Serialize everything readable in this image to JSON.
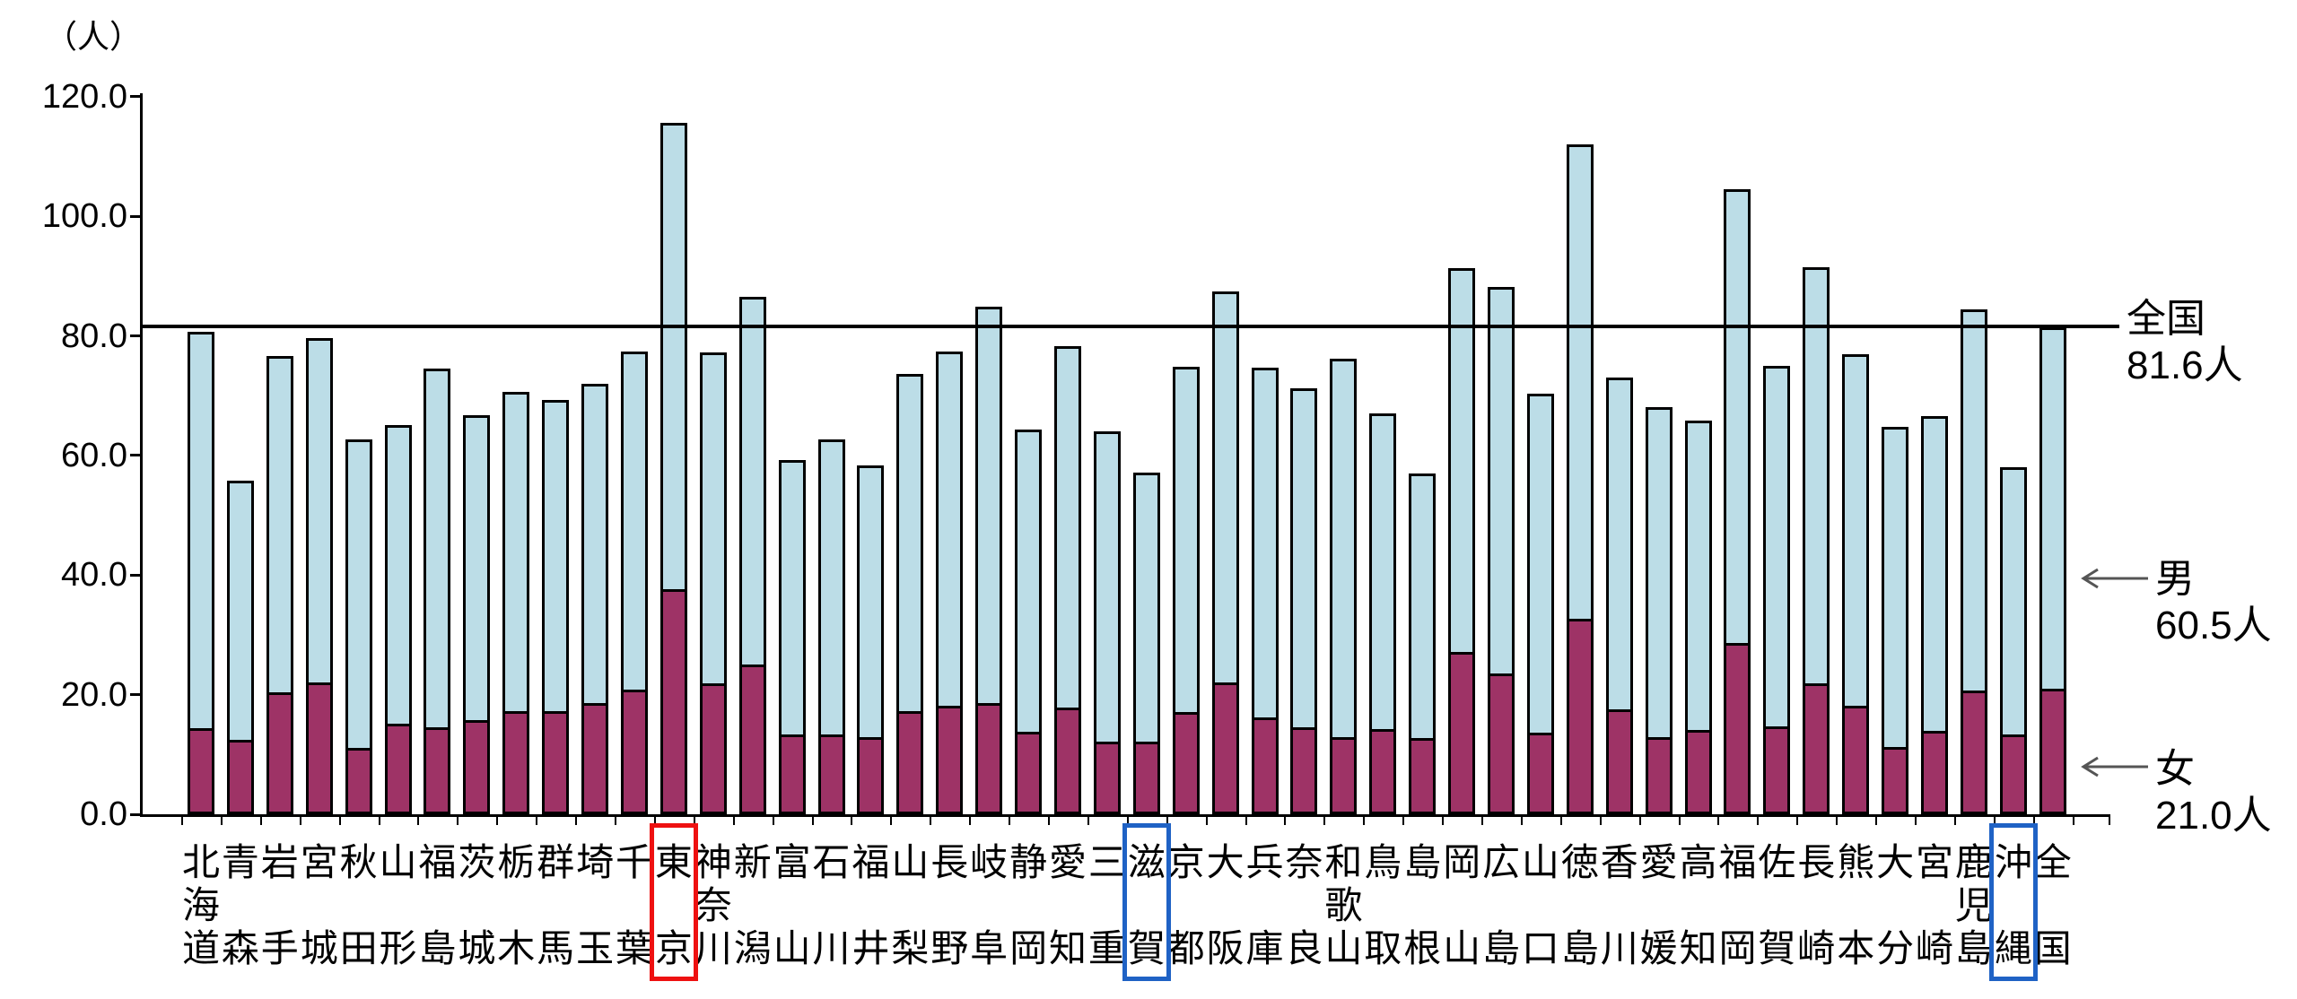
{
  "chart": {
    "unit_label": "（人）",
    "y_ticks": {
      "labels": [
        "120.0",
        "100.0",
        "80.0",
        "60.0",
        "40.0",
        "20.0",
        "0.0"
      ],
      "values": [
        120,
        100,
        80,
        60,
        40,
        20,
        0
      ]
    },
    "national_line": {
      "label": "全国",
      "value_label": "81.6人",
      "value": 81.6
    },
    "male_annotation": {
      "label": "男",
      "value_label": "60.5人"
    },
    "female_annotation": {
      "label": "女",
      "value_label": "21.0人"
    },
    "colors": {
      "male_fill": "#bcdde7",
      "female_fill": "#9e3366",
      "bar_border": "#000000",
      "national_line": "#000000",
      "arrow": "#555555",
      "highlight_red": "#ee1111",
      "highlight_blue": "#1f62c5"
    }
  },
  "chart_data": {
    "type": "bar",
    "stacked": true,
    "title": "",
    "ylabel": "（人）",
    "ylim": [
      0,
      120
    ],
    "grid": false,
    "legend_position": "right-arrows",
    "national_reference": 81.6,
    "categories": [
      "北海道",
      "青森",
      "岩手",
      "宮城",
      "秋田",
      "山形",
      "福島",
      "茨城",
      "栃木",
      "群馬",
      "埼玉",
      "千葉",
      "東京",
      "神奈川",
      "新潟",
      "富山",
      "石川",
      "福井",
      "山梨",
      "長野",
      "岐阜",
      "静岡",
      "愛知",
      "三重",
      "滋賀",
      "京都",
      "大阪",
      "兵庫",
      "奈良",
      "和歌山",
      "鳥取",
      "島根",
      "岡山",
      "広島",
      "山口",
      "徳島",
      "香川",
      "愛媛",
      "高知",
      "福岡",
      "佐賀",
      "長崎",
      "熊本",
      "大分",
      "宮崎",
      "鹿児島",
      "沖縄",
      "全国"
    ],
    "series": [
      {
        "name": "女",
        "color": "#9e3366",
        "values": [
          14.4,
          12.4,
          20.4,
          22.1,
          11.1,
          15.1,
          14.6,
          15.8,
          17.2,
          17.2,
          18.6,
          20.9,
          37.7,
          21.9,
          25.1,
          13.4,
          13.3,
          12.9,
          17.3,
          18.2,
          18.6,
          13.8,
          17.8,
          12.2,
          12.1,
          17.1,
          22.1,
          16.2,
          14.6,
          12.9,
          14.3,
          12.8,
          27.1,
          23.6,
          13.6,
          32.7,
          17.6,
          12.9,
          14.1,
          28.7,
          14.7,
          21.9,
          18.2,
          11.3,
          13.9,
          20.7,
          13.4,
          21.0
        ]
      },
      {
        "name": "男",
        "color": "#bcdde7",
        "values": [
          66.3,
          43.4,
          56.3,
          57.6,
          51.6,
          50.0,
          60.0,
          51.0,
          53.5,
          52.1,
          53.4,
          56.5,
          78.0,
          55.3,
          61.5,
          45.8,
          49.4,
          45.5,
          56.3,
          59.2,
          66.3,
          50.5,
          60.5,
          51.8,
          45.1,
          57.7,
          65.4,
          58.5,
          56.6,
          63.3,
          52.7,
          44.2,
          64.2,
          64.6,
          56.7,
          79.4,
          55.4,
          55.2,
          51.7,
          75.8,
          60.3,
          69.6,
          58.8,
          53.5,
          52.7,
          63.8,
          44.6,
          60.5
        ]
      }
    ],
    "totals": [
      80.7,
      55.8,
      76.7,
      79.7,
      62.7,
      65.1,
      74.6,
      66.8,
      70.7,
      69.3,
      72.0,
      77.4,
      115.7,
      77.2,
      86.6,
      59.2,
      62.7,
      58.4,
      73.6,
      77.4,
      84.9,
      64.3,
      78.3,
      64.0,
      57.2,
      74.8,
      87.5,
      74.7,
      71.2,
      76.2,
      67.0,
      57.0,
      91.3,
      88.2,
      70.3,
      112.1,
      73.0,
      68.1,
      65.8,
      104.5,
      75.0,
      91.5,
      77.0,
      64.8,
      66.6,
      84.5,
      58.0,
      81.5
    ],
    "highlights": [
      {
        "category": "東京",
        "color": "red"
      },
      {
        "category": "滋賀",
        "color": "blue"
      },
      {
        "category": "沖縄",
        "color": "blue"
      }
    ]
  }
}
